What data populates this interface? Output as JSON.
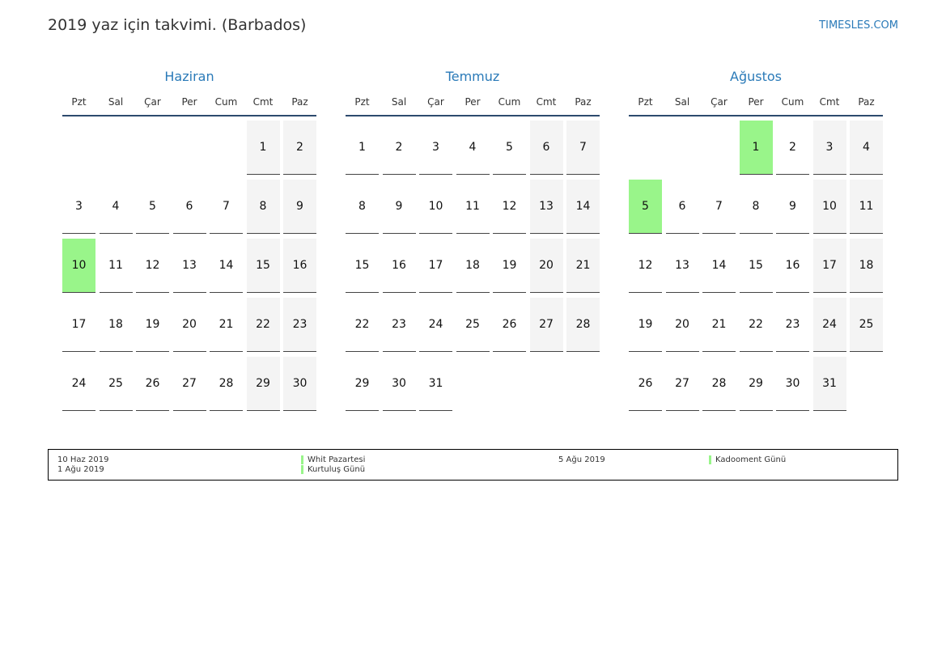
{
  "header": {
    "title": "2019 yaz için takvimi. (Barbados)",
    "site": "TIMESLES.COM"
  },
  "weekdays": [
    "Pzt",
    "Sal",
    "Çar",
    "Per",
    "Cum",
    "Cmt",
    "Paz"
  ],
  "holiday_color": "#99f58a",
  "months": [
    {
      "name": "Haziran",
      "holidays": [
        10
      ],
      "weeks": [
        [
          null,
          null,
          null,
          null,
          null,
          1,
          2
        ],
        [
          3,
          4,
          5,
          6,
          7,
          8,
          9
        ],
        [
          10,
          11,
          12,
          13,
          14,
          15,
          16
        ],
        [
          17,
          18,
          19,
          20,
          21,
          22,
          23
        ],
        [
          24,
          25,
          26,
          27,
          28,
          29,
          30
        ]
      ]
    },
    {
      "name": "Temmuz",
      "holidays": [],
      "weeks": [
        [
          1,
          2,
          3,
          4,
          5,
          6,
          7
        ],
        [
          8,
          9,
          10,
          11,
          12,
          13,
          14
        ],
        [
          15,
          16,
          17,
          18,
          19,
          20,
          21
        ],
        [
          22,
          23,
          24,
          25,
          26,
          27,
          28
        ],
        [
          29,
          30,
          31,
          null,
          null,
          null,
          null
        ]
      ]
    },
    {
      "name": "Ağustos",
      "holidays": [
        1,
        5
      ],
      "weeks": [
        [
          null,
          null,
          null,
          1,
          2,
          3,
          4
        ],
        [
          5,
          6,
          7,
          8,
          9,
          10,
          11
        ],
        [
          12,
          13,
          14,
          15,
          16,
          17,
          18
        ],
        [
          19,
          20,
          21,
          22,
          23,
          24,
          25
        ],
        [
          26,
          27,
          28,
          29,
          30,
          31,
          null
        ]
      ]
    }
  ],
  "legend": [
    {
      "date": "10 Haz 2019",
      "name": "Whit Pazartesi"
    },
    {
      "date": "1 Ağu 2019",
      "name": "Kurtuluş Günü"
    },
    {
      "date": "5 Ağu 2019",
      "name": "Kadooment Günü"
    }
  ]
}
